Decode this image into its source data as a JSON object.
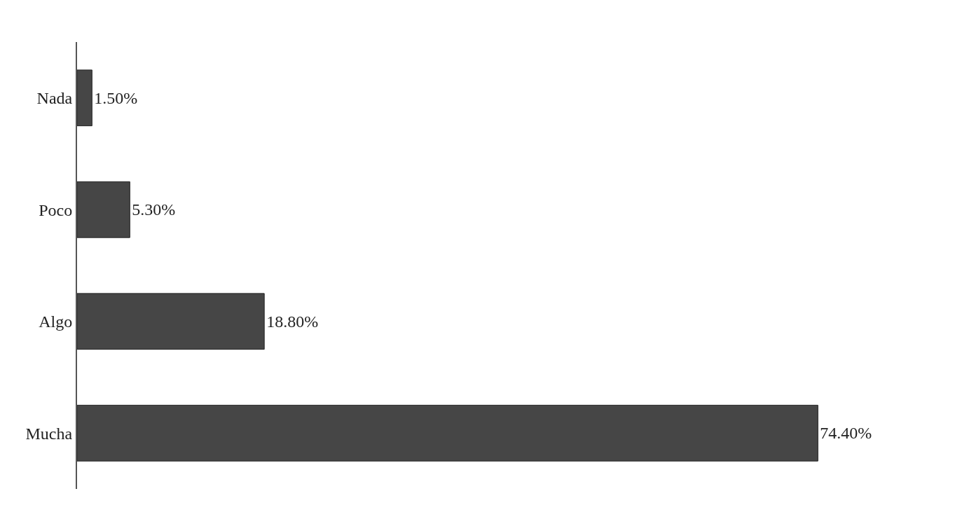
{
  "chart_data": {
    "type": "bar",
    "orientation": "horizontal",
    "categories": [
      "Nada",
      "Poco",
      "Algo",
      "Mucha"
    ],
    "values": [
      1.5,
      5.3,
      18.8,
      74.4
    ],
    "value_labels": [
      "1.50%",
      "5.30%",
      "18.80%",
      "74.40%"
    ],
    "color": "#464646"
  }
}
